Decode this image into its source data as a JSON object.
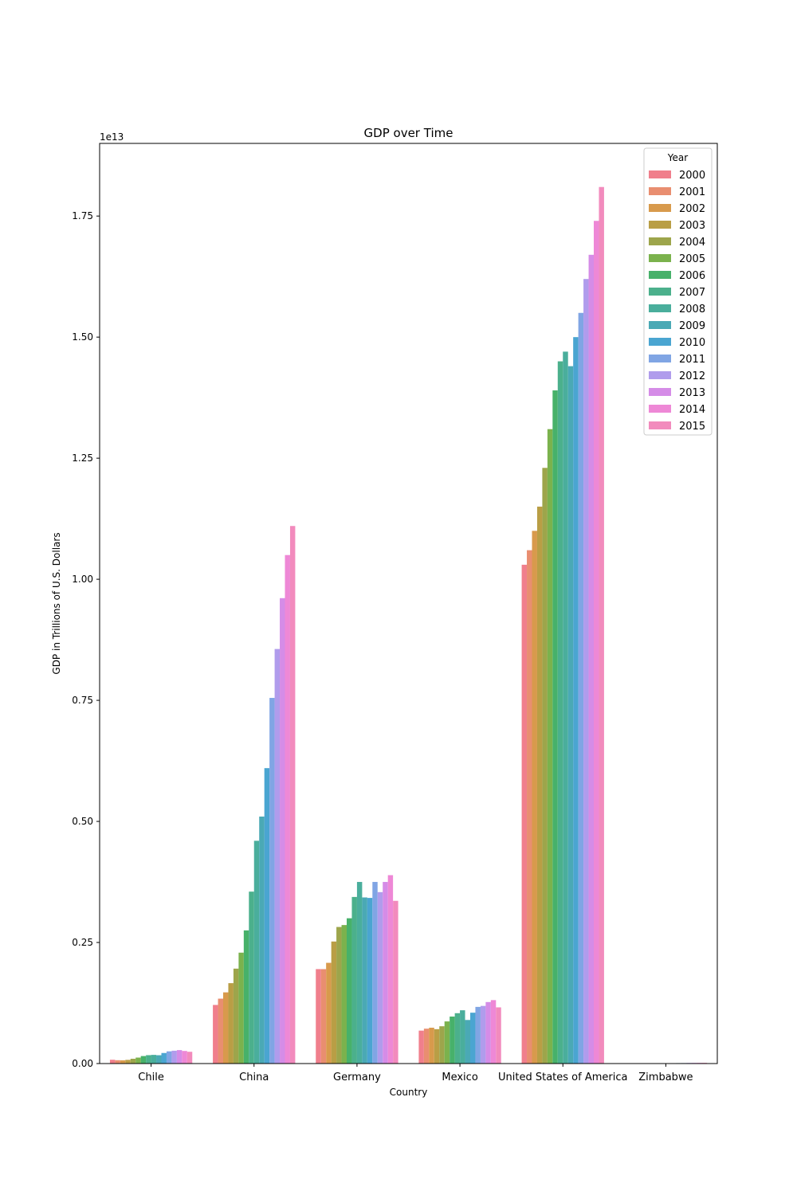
{
  "chart_data": {
    "type": "bar",
    "title": "GDP over Time",
    "xlabel": "Country",
    "ylabel": "GDP in Trillions of U.S. Dollars",
    "offset_label": "1e13",
    "ylim": [
      0,
      1.9
    ],
    "yticks": [
      0.0,
      0.25,
      0.5,
      0.75,
      1.0,
      1.25,
      1.5,
      1.75
    ],
    "ytick_labels": [
      "0.00",
      "0.25",
      "0.50",
      "0.75",
      "1.00",
      "1.25",
      "1.50",
      "1.75"
    ],
    "grid": false,
    "legend": {
      "title": "Year",
      "placement": "top-right"
    },
    "categories": [
      "Chile",
      "China",
      "Germany",
      "Mexico",
      "United States of America",
      "Zimbabwe"
    ],
    "series": [
      {
        "name": "2000",
        "color": "#f07f8c",
        "values": [
          0.0078,
          0.121,
          0.195,
          0.068,
          1.03,
          0.0007
        ]
      },
      {
        "name": "2001",
        "color": "#e98e70",
        "values": [
          0.0069,
          0.134,
          0.195,
          0.072,
          1.06,
          0.0007
        ]
      },
      {
        "name": "2002",
        "color": "#d89a4c",
        "values": [
          0.0067,
          0.147,
          0.208,
          0.074,
          1.1,
          0.0007
        ]
      },
      {
        "name": "2003",
        "color": "#b99e45",
        "values": [
          0.0076,
          0.166,
          0.252,
          0.071,
          1.15,
          0.0006
        ]
      },
      {
        "name": "2004",
        "color": "#9da54b",
        "values": [
          0.0099,
          0.196,
          0.282,
          0.077,
          1.23,
          0.0006
        ]
      },
      {
        "name": "2005",
        "color": "#7bb24d",
        "values": [
          0.0123,
          0.229,
          0.286,
          0.087,
          1.31,
          0.0006
        ]
      },
      {
        "name": "2006",
        "color": "#47b16a",
        "values": [
          0.0155,
          0.275,
          0.3,
          0.097,
          1.39,
          0.0005
        ]
      },
      {
        "name": "2007",
        "color": "#4bb08c",
        "values": [
          0.0173,
          0.355,
          0.344,
          0.104,
          1.45,
          0.0005
        ]
      },
      {
        "name": "2008",
        "color": "#4aae9c",
        "values": [
          0.0179,
          0.46,
          0.375,
          0.11,
          1.47,
          0.0004
        ]
      },
      {
        "name": "2009",
        "color": "#4aa9b5",
        "values": [
          0.0172,
          0.51,
          0.343,
          0.09,
          1.44,
          0.0008
        ]
      },
      {
        "name": "2010",
        "color": "#4aa5d1",
        "values": [
          0.0218,
          0.61,
          0.342,
          0.105,
          1.5,
          0.0009
        ]
      },
      {
        "name": "2011",
        "color": "#80a5e4",
        "values": [
          0.0252,
          0.755,
          0.375,
          0.117,
          1.55,
          0.001
        ]
      },
      {
        "name": "2012",
        "color": "#b09cec",
        "values": [
          0.0265,
          0.856,
          0.354,
          0.119,
          1.62,
          0.0012
        ]
      },
      {
        "name": "2013",
        "color": "#d58ce7",
        "values": [
          0.0278,
          0.961,
          0.375,
          0.127,
          1.67,
          0.0013
        ]
      },
      {
        "name": "2014",
        "color": "#ee88d6",
        "values": [
          0.026,
          1.05,
          0.389,
          0.131,
          1.74,
          0.0014
        ]
      },
      {
        "name": "2015",
        "color": "#f28bbd",
        "values": [
          0.0243,
          1.11,
          0.336,
          0.116,
          1.81,
          0.0014
        ]
      }
    ]
  }
}
